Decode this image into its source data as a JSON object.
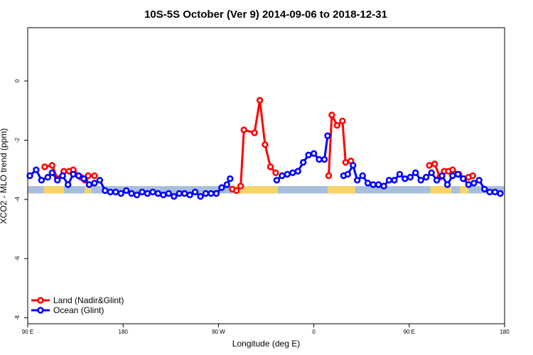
{
  "chart_data": {
    "type": "line",
    "title": "10S-5S October (Ver 9)   2014-09-06 to 2018-12-31",
    "xlabel": "Longitude (deg E)",
    "ylabel": "XCO2 - MLO trend (ppm)",
    "xlim": [
      0,
      450
    ],
    "ylim": [
      -8.2,
      1.8
    ],
    "x_ticks": [
      {
        "value": 0,
        "label": "90 E"
      },
      {
        "value": 90,
        "label": "180"
      },
      {
        "value": 180,
        "label": "90 W"
      },
      {
        "value": 270,
        "label": "0"
      },
      {
        "value": 360,
        "label": "90 E"
      },
      {
        "value": 450,
        "label": "180"
      }
    ],
    "y_ticks": [
      0,
      -2,
      -4,
      -6,
      -8
    ],
    "grid": false,
    "legend_position": "bottom-left",
    "colors": {
      "land": "#ff0000",
      "ocean": "#0000ff",
      "sea_band": "#a8bfdc",
      "land_band": "#f7d46a"
    },
    "band": {
      "y_top": -3.55,
      "y_bottom": -3.8,
      "land_segments": [
        [
          195,
          236
        ],
        [
          283,
          309
        ],
        [
          15,
          34
        ],
        [
          54,
          60
        ],
        [
          380,
          400
        ],
        [
          408,
          416
        ]
      ]
    },
    "series": [
      {
        "name": "Land (Nadir&Glint)",
        "color": "#ff0000",
        "segments": [
          [
            [
              16,
              -2.9
            ],
            [
              23,
              -2.85
            ],
            [
              28,
              -3.3
            ],
            [
              34,
              -3.05
            ],
            [
              39,
              -3.05
            ],
            [
              43,
              -3.0
            ],
            [
              50,
              -3.25
            ],
            [
              54,
              -3.35
            ],
            [
              57,
              -3.2
            ],
            [
              63,
              -3.2
            ]
          ],
          [
            [
              193,
              -3.65
            ],
            [
              197,
              -3.7
            ],
            [
              201,
              -3.55
            ],
            [
              204,
              -1.65
            ],
            [
              214,
              -1.75
            ],
            [
              219,
              -0.65
            ],
            [
              224,
              -2.15
            ],
            [
              229,
              -2.9
            ],
            [
              234,
              -3.1
            ]
          ],
          [
            [
              284,
              -3.2
            ],
            [
              287,
              -1.15
            ],
            [
              292,
              -1.5
            ],
            [
              297,
              -1.35
            ],
            [
              300,
              -2.75
            ],
            [
              305,
              -2.7
            ]
          ],
          [
            [
              379,
              -2.85
            ],
            [
              384,
              -2.8
            ],
            [
              389,
              -3.25
            ],
            [
              393,
              -3.05
            ],
            [
              397,
              -3.05
            ],
            [
              401,
              -3.0
            ],
            [
              407,
              -3.15
            ],
            [
              412,
              -3.3
            ],
            [
              416,
              -3.25
            ],
            [
              420,
              -3.2
            ]
          ]
        ]
      },
      {
        "name": "Ocean (Glint)",
        "color": "#0000ff",
        "segments": [
          [
            [
              2,
              -3.2
            ],
            [
              8,
              -3.0
            ],
            [
              13,
              -3.35
            ],
            [
              19,
              -3.25
            ],
            [
              23,
              -3.1
            ],
            [
              28,
              -3.35
            ],
            [
              33,
              -3.2
            ],
            [
              38,
              -3.5
            ],
            [
              43,
              -3.15
            ],
            [
              48,
              -3.2
            ],
            [
              53,
              -3.3
            ],
            [
              58,
              -3.5
            ],
            [
              63,
              -3.45
            ],
            [
              68,
              -3.35
            ],
            [
              73,
              -3.7
            ],
            [
              78,
              -3.75
            ],
            [
              83,
              -3.75
            ],
            [
              88,
              -3.8
            ],
            [
              93,
              -3.7
            ],
            [
              98,
              -3.8
            ],
            [
              103,
              -3.85
            ],
            [
              108,
              -3.75
            ],
            [
              113,
              -3.8
            ],
            [
              118,
              -3.75
            ],
            [
              123,
              -3.8
            ],
            [
              128,
              -3.85
            ],
            [
              133,
              -3.8
            ],
            [
              138,
              -3.9
            ],
            [
              143,
              -3.8
            ],
            [
              148,
              -3.8
            ],
            [
              153,
              -3.85
            ],
            [
              158,
              -3.75
            ],
            [
              163,
              -3.9
            ],
            [
              168,
              -3.8
            ],
            [
              173,
              -3.8
            ],
            [
              178,
              -3.8
            ],
            [
              183,
              -3.6
            ],
            [
              188,
              -3.5
            ],
            [
              191,
              -3.3
            ]
          ],
          [
            [
              235,
              -3.35
            ],
            [
              240,
              -3.2
            ],
            [
              245,
              -3.15
            ],
            [
              250,
              -3.1
            ],
            [
              255,
              -3.05
            ],
            [
              260,
              -2.75
            ],
            [
              265,
              -2.5
            ],
            [
              270,
              -2.45
            ],
            [
              275,
              -2.65
            ],
            [
              280,
              -2.65
            ],
            [
              283,
              -1.85
            ]
          ],
          [
            [
              298,
              -3.2
            ],
            [
              302,
              -3.15
            ],
            [
              307,
              -2.85
            ],
            [
              311,
              -3.35
            ],
            [
              316,
              -3.2
            ],
            [
              321,
              -3.45
            ],
            [
              326,
              -3.5
            ],
            [
              331,
              -3.5
            ],
            [
              336,
              -3.55
            ],
            [
              341,
              -3.35
            ],
            [
              346,
              -3.35
            ],
            [
              351,
              -3.15
            ],
            [
              356,
              -3.3
            ],
            [
              361,
              -3.25
            ],
            [
              366,
              -3.1
            ],
            [
              371,
              -3.35
            ],
            [
              376,
              -3.25
            ],
            [
              381,
              -3.1
            ],
            [
              386,
              -3.35
            ],
            [
              391,
              -3.2
            ],
            [
              396,
              -3.5
            ],
            [
              401,
              -3.2
            ],
            [
              406,
              -3.15
            ],
            [
              411,
              -3.3
            ],
            [
              416,
              -3.5
            ],
            [
              421,
              -3.45
            ],
            [
              426,
              -3.35
            ],
            [
              431,
              -3.65
            ],
            [
              436,
              -3.75
            ],
            [
              441,
              -3.75
            ],
            [
              446,
              -3.8
            ]
          ]
        ]
      }
    ]
  }
}
